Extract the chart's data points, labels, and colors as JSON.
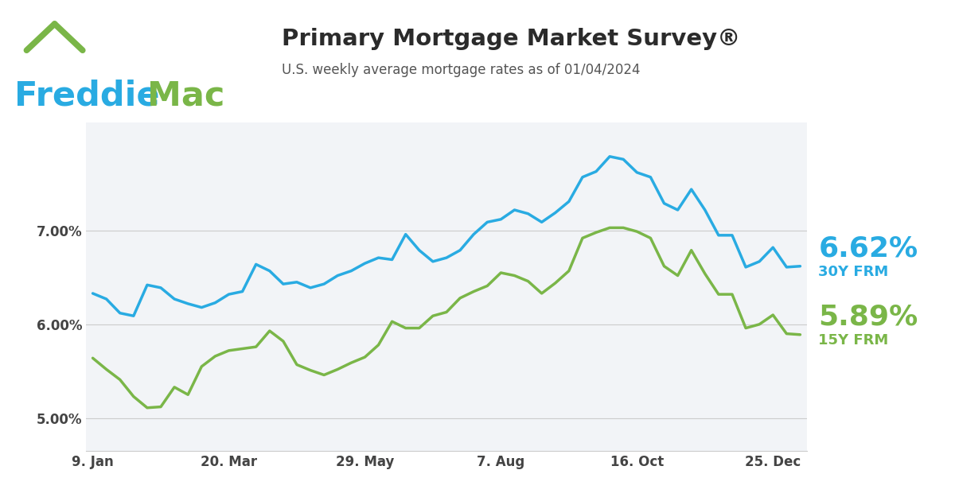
{
  "title": "Primary Mortgage Market Survey®",
  "subtitle": "U.S. weekly average mortgage rates as of 01/04/2024",
  "freddie_color": "#29ABE2",
  "mac_color": "#7AB648",
  "line_30y_color": "#29ABE2",
  "line_15y_color": "#7AB648",
  "bg_color": "#FFFFFF",
  "plot_bg_color": "#F2F4F7",
  "grid_color": "#CCCCCC",
  "label_30y": "6.62%",
  "label_15y": "5.89%",
  "label_30y_sub": "30Y FRM",
  "label_15y_sub": "15Y FRM",
  "yticks": [
    5.0,
    6.0,
    7.0
  ],
  "ytick_labels": [
    "5.00%",
    "6.00%",
    "7.00%"
  ],
  "xtick_labels": [
    "9. Jan",
    "20. Mar",
    "29. May",
    "7. Aug",
    "16. Oct",
    "25. Dec"
  ],
  "xtick_positions": [
    0,
    10,
    20,
    30,
    40,
    50
  ],
  "ylim": [
    4.65,
    8.15
  ],
  "data_30y": [
    6.33,
    6.27,
    6.12,
    6.09,
    6.42,
    6.39,
    6.27,
    6.22,
    6.18,
    6.23,
    6.32,
    6.35,
    6.64,
    6.57,
    6.43,
    6.45,
    6.39,
    6.43,
    6.52,
    6.57,
    6.65,
    6.71,
    6.69,
    6.96,
    6.79,
    6.67,
    6.71,
    6.79,
    6.96,
    7.09,
    7.12,
    7.22,
    7.18,
    7.09,
    7.19,
    7.31,
    7.57,
    7.63,
    7.79,
    7.76,
    7.62,
    7.57,
    7.29,
    7.22,
    7.44,
    7.22,
    6.95,
    6.95,
    6.61,
    6.67,
    6.82,
    6.61,
    6.62
  ],
  "data_15y": [
    5.64,
    5.52,
    5.41,
    5.23,
    5.11,
    5.12,
    5.33,
    5.25,
    5.55,
    5.66,
    5.72,
    5.74,
    5.76,
    5.93,
    5.82,
    5.57,
    5.51,
    5.46,
    5.52,
    5.59,
    5.65,
    5.78,
    6.03,
    5.96,
    5.96,
    6.09,
    6.13,
    6.28,
    6.35,
    6.41,
    6.55,
    6.52,
    6.46,
    6.33,
    6.44,
    6.57,
    6.92,
    6.98,
    7.03,
    7.03,
    6.99,
    6.92,
    6.62,
    6.52,
    6.79,
    6.54,
    6.32,
    6.32,
    5.96,
    6.0,
    6.1,
    5.9,
    5.89
  ],
  "title_fontsize": 21,
  "subtitle_fontsize": 12,
  "axis_label_fontsize": 12,
  "annotation_pct_fontsize": 26,
  "annotation_sub_fontsize": 13
}
